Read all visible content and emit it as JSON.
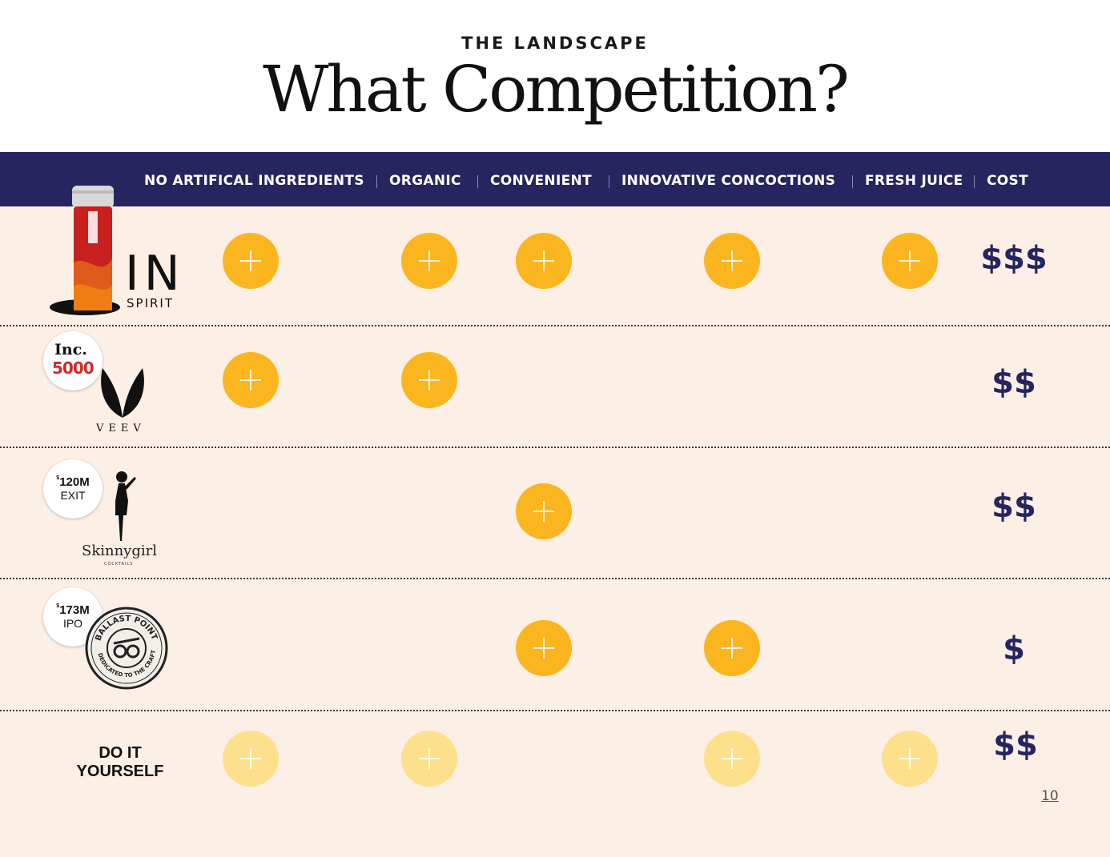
{
  "header": {
    "eyebrow": "THE LANDSCAPE",
    "title": "What Competition?"
  },
  "columns": [
    "NO ARTIFICAL INGREDIENTS",
    "ORGANIC",
    "CONVENIENT",
    "INNOVATIVE CONCOCTIONS",
    "FRESH JUICE",
    "COST"
  ],
  "rows": [
    {
      "brand": "IN SPIRIT",
      "logo_text": {
        "main": "IN",
        "sub": "SPIRIT"
      },
      "checks": [
        true,
        true,
        true,
        true,
        true
      ],
      "cost": "$$$"
    },
    {
      "brand": "VEEV",
      "badge": {
        "top": "Inc.",
        "bottom": "5000"
      },
      "logo_text": {
        "main": "VEEV"
      },
      "checks": [
        true,
        true,
        false,
        false,
        false
      ],
      "cost": "$$"
    },
    {
      "brand": "Skinnygirl",
      "badge": {
        "currency": "$",
        "value": "120M",
        "label": "EXIT"
      },
      "logo_text": {
        "main": "Skinnygirl",
        "sub": "COCKTAILS"
      },
      "checks": [
        false,
        false,
        true,
        false,
        false
      ],
      "cost": "$$"
    },
    {
      "brand": "Ballast Point",
      "badge": {
        "currency": "$",
        "value": "173M",
        "label": "IPO"
      },
      "logo_text": {
        "ring_top": "BALLAST POINT",
        "ring_bottom": "DEDICATED TO THE CRAFT"
      },
      "checks": [
        false,
        false,
        true,
        true,
        false
      ],
      "cost": "$"
    },
    {
      "brand": "DO IT YOURSELF",
      "label_line1": "DO IT",
      "label_line2": "YOURSELF",
      "checks": [
        true,
        true,
        false,
        true,
        true
      ],
      "checks_style": "faded",
      "cost": "$$"
    }
  ],
  "page_number": "10",
  "colors": {
    "header_band": "#262560",
    "row_background": "#fcefe6",
    "check": "#fbb61f",
    "check_faded": "#fde08c",
    "cost_text": "#262560"
  },
  "icons": {
    "check": "plus-circle-icon"
  }
}
